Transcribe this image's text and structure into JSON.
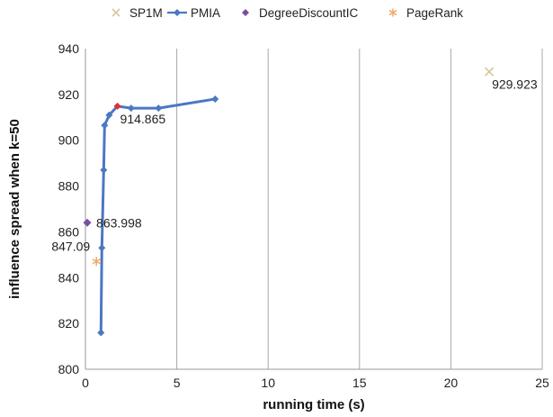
{
  "chart_data": {
    "type": "scatter",
    "xlabel": "running time (s)",
    "ylabel": "influence spread when k=50",
    "xlim": [
      0,
      25
    ],
    "ylim": [
      800,
      940
    ],
    "xticks": [
      0,
      5,
      10,
      15,
      20,
      25
    ],
    "yticks": [
      800,
      820,
      840,
      860,
      880,
      900,
      920,
      940
    ],
    "grid": "vertical",
    "legend_position": "top",
    "series": [
      {
        "name": "SP1M",
        "marker": "x",
        "color": "#d9c59e",
        "points": [
          [
            22.1,
            929.923
          ]
        ]
      },
      {
        "name": "PMIA",
        "marker": "diamond-line",
        "color": "#4a78c2",
        "points": [
          [
            0.85,
            816
          ],
          [
            0.9,
            853
          ],
          [
            1.0,
            887
          ],
          [
            1.05,
            906.5
          ],
          [
            1.3,
            911
          ],
          [
            1.75,
            914.865
          ],
          [
            2.5,
            914
          ],
          [
            4.0,
            914
          ],
          [
            7.1,
            918
          ]
        ],
        "highlight": {
          "point": [
            1.75,
            914.865
          ],
          "color": "#e03030"
        }
      },
      {
        "name": "DegreeDiscountIC",
        "marker": "diamond",
        "color": "#7b4ea0",
        "points": [
          [
            0.1,
            863.998
          ]
        ]
      },
      {
        "name": "PageRank",
        "marker": "asterisk",
        "color": "#f0a868",
        "points": [
          [
            0.6,
            847.09
          ]
        ]
      }
    ],
    "annotations": [
      {
        "text": "929.923",
        "x": 22.1,
        "y": 929.923,
        "anchor": "below-right"
      },
      {
        "text": "914.865",
        "x": 1.75,
        "y": 914.865,
        "anchor": "below-right"
      },
      {
        "text": "863.998",
        "x": 0.1,
        "y": 863.998,
        "anchor": "right"
      },
      {
        "text": "847.09",
        "x": 0.6,
        "y": 847.09,
        "anchor": "above-left"
      }
    ]
  }
}
